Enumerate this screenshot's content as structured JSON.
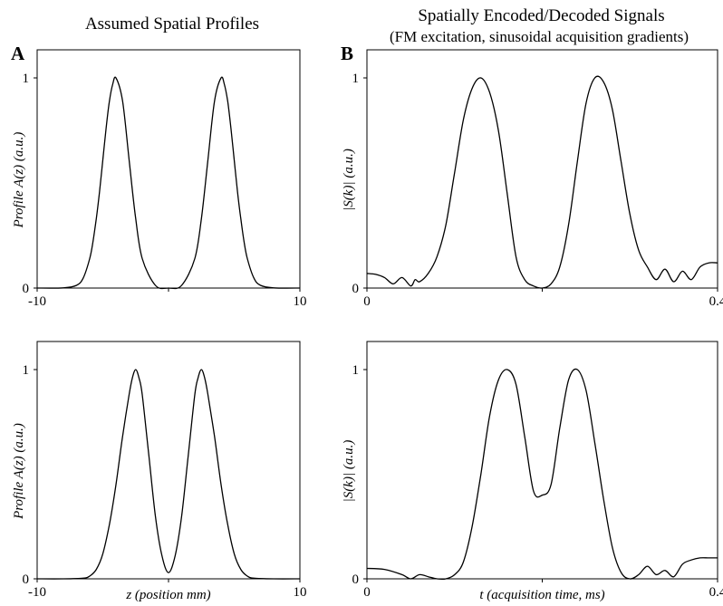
{
  "titles": {
    "left": "Assumed Spatial Profiles",
    "right": "Spatially Encoded/Decoded Signals",
    "right_sub": "(FM excitation, sinusoidal acquisition gradients)"
  },
  "panel_letters": {
    "left": "A",
    "right": "B"
  },
  "chart_data": [
    {
      "id": "A-top",
      "type": "line",
      "xlabel": "",
      "ylabel": "Profile A(z) (a.u.)",
      "xlim": [
        -10,
        10
      ],
      "ylim": [
        0,
        1
      ],
      "xticks": [
        -10,
        0,
        10
      ],
      "xtick_labels": [
        "-10",
        "",
        "10"
      ],
      "yticks": [
        0,
        1
      ],
      "ytick_labels": [
        "0",
        "1"
      ],
      "grid": false,
      "series": [
        {
          "color": "#000000",
          "x": [
            -10,
            -8,
            -7,
            -6.5,
            -6,
            -5.75,
            -5.5,
            -5.25,
            -5,
            -4.75,
            -4.5,
            -4.25,
            -4,
            -3.5,
            -3,
            -2.5,
            -2,
            -1,
            0,
            1,
            2,
            2.5,
            3,
            3.5,
            4,
            4.25,
            4.5,
            4.75,
            5,
            5.25,
            5.5,
            5.75,
            6,
            6.5,
            7,
            8,
            10
          ],
          "y": [
            0,
            0.001,
            0.013,
            0.047,
            0.14,
            0.22,
            0.33,
            0.46,
            0.61,
            0.76,
            0.89,
            0.97,
            1.0,
            0.89,
            0.61,
            0.33,
            0.14,
            0.013,
            0,
            0.013,
            0.14,
            0.33,
            0.61,
            0.89,
            1.0,
            0.97,
            0.89,
            0.76,
            0.61,
            0.46,
            0.33,
            0.22,
            0.14,
            0.047,
            0.013,
            0.001,
            0
          ]
        }
      ]
    },
    {
      "id": "A-bottom",
      "type": "line",
      "xlabel": "z (position mm)",
      "ylabel": "Profile A(z) (a.u.)",
      "xlim": [
        -10,
        10
      ],
      "ylim": [
        0,
        1
      ],
      "xticks": [
        -10,
        0,
        10
      ],
      "xtick_labels": [
        "-10",
        "",
        "10"
      ],
      "yticks": [
        0,
        1
      ],
      "ytick_labels": [
        "0",
        "1"
      ],
      "grid": false,
      "series": [
        {
          "color": "#000000",
          "x": [
            -10,
            -8,
            -6.5,
            -6,
            -5.5,
            -5,
            -4.5,
            -4,
            -3.5,
            -3,
            -2.75,
            -2.5,
            -2.25,
            -2,
            -1.5,
            -1,
            -0.5,
            0,
            0.5,
            1,
            1.5,
            2,
            2.25,
            2.5,
            2.75,
            3,
            3.5,
            4,
            4.5,
            5,
            5.5,
            6,
            6.5,
            8,
            10
          ],
          "y": [
            0,
            0,
            0.003,
            0.013,
            0.045,
            0.12,
            0.26,
            0.45,
            0.68,
            0.88,
            0.96,
            1.0,
            0.96,
            0.88,
            0.59,
            0.3,
            0.11,
            0.03,
            0.11,
            0.3,
            0.59,
            0.88,
            0.96,
            1.0,
            0.96,
            0.88,
            0.68,
            0.45,
            0.26,
            0.12,
            0.045,
            0.013,
            0.003,
            0,
            0
          ]
        }
      ]
    },
    {
      "id": "B-top",
      "type": "line",
      "xlabel": "",
      "ylabel": "|S(k)| (a.u.)",
      "xlim": [
        0,
        0.4
      ],
      "ylim": [
        0,
        1
      ],
      "xticks": [
        0,
        0.2,
        0.4
      ],
      "xtick_labels": [
        "0",
        "",
        "0.4"
      ],
      "yticks": [
        0,
        1
      ],
      "ytick_labels": [
        "0",
        "1"
      ],
      "grid": false,
      "series": [
        {
          "color": "#000000",
          "x": [
            0,
            0.01,
            0.02,
            0.03,
            0.04,
            0.05,
            0.055,
            0.06,
            0.07,
            0.08,
            0.09,
            0.1,
            0.11,
            0.12,
            0.13,
            0.14,
            0.15,
            0.16,
            0.17,
            0.18,
            0.19,
            0.2,
            0.21,
            0.22,
            0.23,
            0.24,
            0.25,
            0.26,
            0.27,
            0.28,
            0.29,
            0.3,
            0.31,
            0.32,
            0.33,
            0.34,
            0.35,
            0.36,
            0.37,
            0.38,
            0.39,
            0.4
          ],
          "y": [
            0.07,
            0.065,
            0.05,
            0.02,
            0.05,
            0.01,
            0.04,
            0.03,
            0.07,
            0.15,
            0.3,
            0.55,
            0.8,
            0.95,
            1.0,
            0.93,
            0.75,
            0.45,
            0.15,
            0.04,
            0.01,
            0.0,
            0.02,
            0.1,
            0.3,
            0.6,
            0.88,
            1.0,
            0.98,
            0.85,
            0.6,
            0.35,
            0.18,
            0.1,
            0.04,
            0.09,
            0.03,
            0.08,
            0.04,
            0.1,
            0.12,
            0.12
          ]
        }
      ]
    },
    {
      "id": "B-bottom",
      "type": "line",
      "xlabel": "t (acquisition time, ms)",
      "ylabel": "|S(k)| (a.u.)",
      "xlim": [
        0,
        0.4
      ],
      "ylim": [
        0,
        1
      ],
      "xticks": [
        0,
        0.2,
        0.4
      ],
      "xtick_labels": [
        "0",
        "",
        "0.4"
      ],
      "yticks": [
        0,
        1
      ],
      "ytick_labels": [
        "0",
        "1"
      ],
      "grid": false,
      "series": [
        {
          "color": "#000000",
          "x": [
            0,
            0.02,
            0.04,
            0.05,
            0.06,
            0.07,
            0.08,
            0.09,
            0.1,
            0.11,
            0.12,
            0.13,
            0.14,
            0.15,
            0.16,
            0.17,
            0.18,
            0.19,
            0.2,
            0.21,
            0.22,
            0.23,
            0.24,
            0.25,
            0.26,
            0.27,
            0.28,
            0.29,
            0.3,
            0.31,
            0.32,
            0.33,
            0.34,
            0.35,
            0.36,
            0.37,
            0.38,
            0.39,
            0.4
          ],
          "y": [
            0.05,
            0.045,
            0.02,
            0.0,
            0.02,
            0.01,
            0.0,
            0.0,
            0.02,
            0.08,
            0.25,
            0.5,
            0.78,
            0.95,
            1.0,
            0.93,
            0.68,
            0.42,
            0.4,
            0.45,
            0.72,
            0.95,
            1.0,
            0.9,
            0.65,
            0.38,
            0.15,
            0.03,
            0.0,
            0.02,
            0.06,
            0.02,
            0.04,
            0.01,
            0.07,
            0.09,
            0.1,
            0.1,
            0.1
          ]
        }
      ]
    }
  ]
}
